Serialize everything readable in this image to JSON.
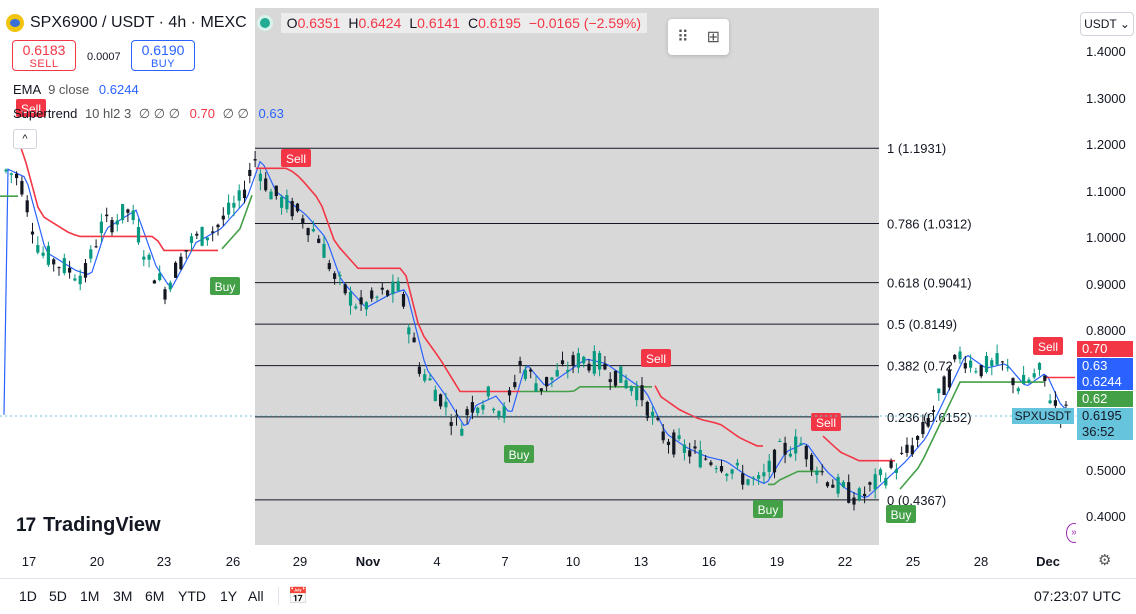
{
  "header": {
    "symbol_title": "SPX6900 / USDT · 4h · MEXC",
    "ohlc": [
      {
        "k": "O",
        "v": "0.6351"
      },
      {
        "k": "H",
        "v": "0.6424"
      },
      {
        "k": "L",
        "v": "0.6141"
      },
      {
        "k": "C",
        "v": "0.6195"
      },
      {
        "k": "",
        "v": "−0.0165 (−2.59%)"
      }
    ]
  },
  "trade": {
    "sell_price": "0.6183",
    "sell_label": "SELL",
    "spread": "0.0007",
    "buy_price": "0.6190",
    "buy_label": "BUY"
  },
  "indicators": {
    "ema_name": "EMA",
    "ema_params": "9 close",
    "ema_value": "0.6244",
    "st_name": "Supertrend",
    "st_params": "10 hl2 3",
    "st_blank1": "∅ ∅ ∅",
    "st_red": "0.70",
    "st_blank2": "∅ ∅",
    "st_blue": "0.63",
    "collapse": "^"
  },
  "price_axis": {
    "currency": "USDT ⌄",
    "ticks": [
      "1.4000",
      "1.3000",
      "1.2000",
      "1.1000",
      "1.0000",
      "0.9000",
      "0.8000",
      "0.5000",
      "0.4000"
    ],
    "labels": [
      {
        "text": "0.70",
        "color": "#f23645"
      },
      {
        "text": "0.63",
        "color": "#2962ff"
      },
      {
        "text": "0.6244",
        "color": "#2962ff"
      },
      {
        "text": "0.62",
        "color": "#43a047"
      },
      {
        "text": "0.6195",
        "color": "#67c4dd"
      },
      {
        "text": "36:52",
        "color": "#67c4dd"
      }
    ],
    "last_tag": "SPXUSDT"
  },
  "fib_levels": [
    {
      "text": "1 (1.1931)",
      "price": 1.1931
    },
    {
      "text": "0.786 (1.0312)",
      "price": 1.0312
    },
    {
      "text": "0.618 (0.9041)",
      "price": 0.9041
    },
    {
      "text": "0.5 (0.8149)",
      "price": 0.8149
    },
    {
      "text": "0.382 (0.72",
      "price": 0.7256
    },
    {
      "text": "0.236 (0.6152)",
      "price": 0.6152
    },
    {
      "text": "0 (0.4367)",
      "price": 0.4367
    }
  ],
  "signals": [
    {
      "text": "Sell",
      "kind": "sell"
    },
    {
      "text": "Sell",
      "kind": "sell"
    },
    {
      "text": "Buy",
      "kind": "buy"
    },
    {
      "text": "Sell",
      "kind": "sell"
    },
    {
      "text": "Buy",
      "kind": "buy"
    },
    {
      "text": "Sell",
      "kind": "sell"
    },
    {
      "text": "Buy",
      "kind": "buy"
    },
    {
      "text": "Buy",
      "kind": "buy"
    },
    {
      "text": "Sell",
      "kind": "sell"
    }
  ],
  "time_axis": {
    "ticks": [
      {
        "label": "17",
        "bold": false
      },
      {
        "label": "20",
        "bold": false
      },
      {
        "label": "23",
        "bold": false
      },
      {
        "label": "26",
        "bold": false
      },
      {
        "label": "29",
        "bold": false
      },
      {
        "label": "Nov",
        "bold": true
      },
      {
        "label": "4",
        "bold": false
      },
      {
        "label": "7",
        "bold": false
      },
      {
        "label": "10",
        "bold": false
      },
      {
        "label": "13",
        "bold": false
      },
      {
        "label": "16",
        "bold": false
      },
      {
        "label": "19",
        "bold": false
      },
      {
        "label": "22",
        "bold": false
      },
      {
        "label": "25",
        "bold": false
      },
      {
        "label": "28",
        "bold": false
      },
      {
        "label": "Dec",
        "bold": true
      }
    ]
  },
  "bottom_bar": {
    "ranges": [
      "1D",
      "5D",
      "1M",
      "3M",
      "6M",
      "YTD",
      "1Y",
      "All"
    ],
    "clock": "07:23:07 UTC"
  },
  "branding": {
    "logo": "TradingView",
    "mark": "17"
  },
  "colors": {
    "up": "#089981",
    "down": "#131722",
    "ema": "#2962ff",
    "st_up": "#43a047",
    "st_down": "#f23645"
  }
}
